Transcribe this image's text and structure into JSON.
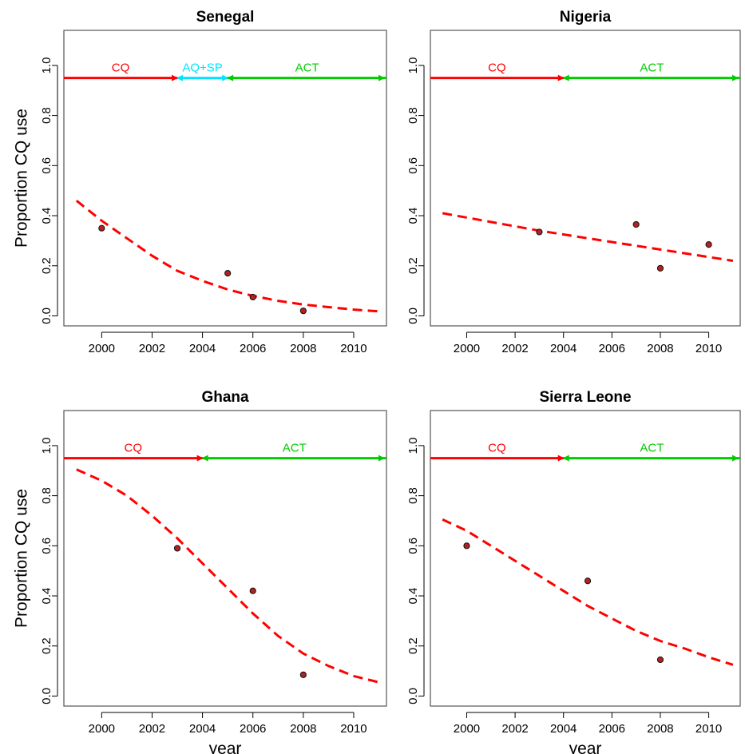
{
  "chart_data": [
    {
      "type": "scatter",
      "title": "Senegal",
      "xlabel": "",
      "ylabel": "Proportion CQ use",
      "xlim": [
        1998.5,
        2011.3
      ],
      "ylim": [
        -0.04,
        1.14
      ],
      "xticks": [
        2000,
        2002,
        2004,
        2006,
        2008,
        2010
      ],
      "xtick_labels": [
        "2000",
        "2002",
        "2004",
        "2006",
        "2008",
        "2010"
      ],
      "yticks": [
        0,
        0.2,
        0.4,
        0.6,
        0.8,
        1.0
      ],
      "ytick_labels": [
        "0.0",
        "0.2",
        "0.4",
        "0.6",
        "0.8",
        "1.0"
      ],
      "points": {
        "x": [
          2000,
          2005,
          2006,
          2008
        ],
        "y": [
          0.35,
          0.17,
          0.075,
          0.02
        ]
      },
      "fit_curve": {
        "x": [
          1999,
          2000,
          2001,
          2002,
          2003,
          2004,
          2005,
          2006,
          2007,
          2008,
          2009,
          2010,
          2011
        ],
        "y": [
          0.46,
          0.38,
          0.31,
          0.24,
          0.18,
          0.14,
          0.105,
          0.08,
          0.06,
          0.045,
          0.035,
          0.025,
          0.018
        ]
      },
      "periods": [
        {
          "label": "CQ",
          "start": 1998.5,
          "end": 2003,
          "color": "#ff0000"
        },
        {
          "label": "AQ+SP",
          "start": 2003,
          "end": 2005,
          "color": "#00e5ff"
        },
        {
          "label": "ACT",
          "start": 2005,
          "end": 2011.3,
          "color": "#00cc00"
        }
      ],
      "colors": {
        "points": "#b22222",
        "fit": "#ff0000"
      }
    },
    {
      "type": "scatter",
      "title": "Nigeria",
      "xlabel": "",
      "ylabel": "",
      "xlim": [
        1998.5,
        2011.3
      ],
      "ylim": [
        -0.04,
        1.14
      ],
      "xticks": [
        2000,
        2002,
        2004,
        2006,
        2008,
        2010
      ],
      "xtick_labels": [
        "2000",
        "2002",
        "2004",
        "2006",
        "2008",
        "2010"
      ],
      "yticks": [
        0,
        0.2,
        0.4,
        0.6,
        0.8,
        1.0
      ],
      "ytick_labels": [
        "0.0",
        "0.2",
        "0.4",
        "0.6",
        "0.8",
        "1.0"
      ],
      "points": {
        "x": [
          2003,
          2007,
          2008,
          2010
        ],
        "y": [
          0.335,
          0.365,
          0.19,
          0.285
        ]
      },
      "fit_curve": {
        "x": [
          1999,
          2001,
          2003,
          2005,
          2007,
          2009,
          2011
        ],
        "y": [
          0.41,
          0.375,
          0.34,
          0.31,
          0.28,
          0.25,
          0.22
        ]
      },
      "periods": [
        {
          "label": "CQ",
          "start": 1998.5,
          "end": 2004,
          "color": "#ff0000"
        },
        {
          "label": "ACT",
          "start": 2004,
          "end": 2011.3,
          "color": "#00cc00"
        }
      ],
      "colors": {
        "points": "#b22222",
        "fit": "#ff0000"
      }
    },
    {
      "type": "scatter",
      "title": "Ghana",
      "xlabel": "year",
      "ylabel": "Proportion CQ use",
      "xlim": [
        1998.5,
        2011.3
      ],
      "ylim": [
        -0.04,
        1.14
      ],
      "xticks": [
        2000,
        2002,
        2004,
        2006,
        2008,
        2010
      ],
      "xtick_labels": [
        "2000",
        "2002",
        "2004",
        "2006",
        "2008",
        "2010"
      ],
      "yticks": [
        0,
        0.2,
        0.4,
        0.6,
        0.8,
        1.0
      ],
      "ytick_labels": [
        "0.0",
        "0.2",
        "0.4",
        "0.6",
        "0.8",
        "1.0"
      ],
      "points": {
        "x": [
          2003,
          2006,
          2008
        ],
        "y": [
          0.59,
          0.42,
          0.085
        ]
      },
      "fit_curve": {
        "x": [
          1999,
          2000,
          2001,
          2002,
          2003,
          2004,
          2005,
          2006,
          2007,
          2008,
          2009,
          2010,
          2011
        ],
        "y": [
          0.905,
          0.86,
          0.8,
          0.72,
          0.63,
          0.53,
          0.43,
          0.33,
          0.24,
          0.17,
          0.12,
          0.08,
          0.055
        ]
      },
      "periods": [
        {
          "label": "CQ",
          "start": 1998.5,
          "end": 2004,
          "color": "#ff0000"
        },
        {
          "label": "ACT",
          "start": 2004,
          "end": 2011.3,
          "color": "#00cc00"
        }
      ],
      "colors": {
        "points": "#b22222",
        "fit": "#ff0000"
      }
    },
    {
      "type": "scatter",
      "title": "Sierra Leone",
      "xlabel": "year",
      "ylabel": "",
      "xlim": [
        1998.5,
        2011.3
      ],
      "ylim": [
        -0.04,
        1.14
      ],
      "xticks": [
        2000,
        2002,
        2004,
        2006,
        2008,
        2010
      ],
      "xtick_labels": [
        "2000",
        "2002",
        "2004",
        "2006",
        "2008",
        "2010"
      ],
      "yticks": [
        0,
        0.2,
        0.4,
        0.6,
        0.8,
        1.0
      ],
      "ytick_labels": [
        "0.0",
        "0.2",
        "0.4",
        "0.6",
        "0.8",
        "1.0"
      ],
      "points": {
        "x": [
          2000,
          2005,
          2008
        ],
        "y": [
          0.6,
          0.46,
          0.145
        ]
      },
      "fit_curve": {
        "x": [
          1999,
          2000,
          2001,
          2002,
          2003,
          2004,
          2005,
          2006,
          2007,
          2008,
          2009,
          2010,
          2011
        ],
        "y": [
          0.705,
          0.66,
          0.6,
          0.54,
          0.48,
          0.42,
          0.36,
          0.31,
          0.26,
          0.22,
          0.19,
          0.155,
          0.125
        ]
      },
      "periods": [
        {
          "label": "CQ",
          "start": 1998.5,
          "end": 2004,
          "color": "#ff0000"
        },
        {
          "label": "ACT",
          "start": 2004,
          "end": 2011.3,
          "color": "#00cc00"
        }
      ],
      "colors": {
        "points": "#b22222",
        "fit": "#ff0000"
      }
    }
  ]
}
